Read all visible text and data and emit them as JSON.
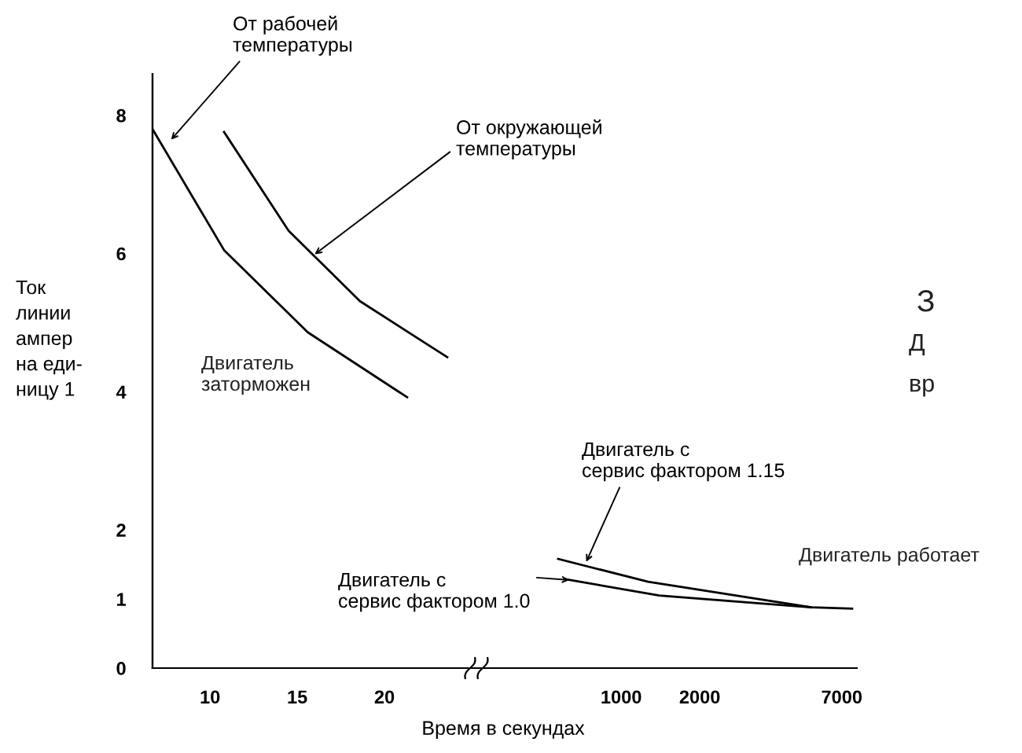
{
  "chart_data": [
    {
      "type": "line",
      "xlabel": "Время в секундах",
      "ylabel": "Ток\nлинии\nампер\nна еди-\nницу 1",
      "xlim": [
        6.7,
        25
      ],
      "xticks": [
        10,
        15,
        20
      ],
      "ylim": [
        0,
        8.6
      ],
      "yticks": [
        0,
        1,
        2,
        4,
        6,
        8
      ],
      "series": [
        {
          "color": "#000000",
          "x": [
            6.7,
            10.8,
            15.6,
            21.3
          ],
          "values": [
            7.8,
            6.05,
            4.86,
            3.92
          ]
        },
        {
          "color": "#000000",
          "x": [
            10.8,
            14.5,
            18.6,
            23.6
          ],
          "values": [
            7.76,
            6.33,
            5.31,
            4.5
          ]
        }
      ],
      "annotations": [
        {
          "text": "От рабочей\nтемпературы",
          "x": 7.6,
          "y": 7.6
        },
        {
          "text": "От окружающей\nтемпературы",
          "x": 15.8,
          "y": 5.95
        },
        "Двигатель\nзаторможен"
      ]
    },
    {
      "type": "line",
      "log": "x",
      "xlim": [
        16,
        8000
      ],
      "xticks": [
        1000,
        2000,
        7000
      ],
      "ylim": [
        0,
        8.6
      ],
      "yticks": [
        0,
        1,
        2,
        4,
        6,
        8
      ],
      "tick_labels": "x",
      "series": [
        {
          "color": "#000000",
          "x": [
            573,
            1268,
            5340,
            7670
          ],
          "values": [
            1.58,
            1.25,
            0.88,
            0.86
          ]
        },
        {
          "color": "#000000",
          "x": [
            605,
            1398,
            5340
          ],
          "values": [
            1.29,
            1.05,
            0.88
          ]
        }
      ],
      "annotations": [
        {
          "text": "Двигатель с\nсервис фактором 1.15",
          "x": 723,
          "y": 1.48
        },
        {
          "text": "Двигатель с\nсервис фактором 1.0",
          "x": 658,
          "y": 1.27
        },
        "Двигатель работает",
        "З",
        "Д",
        "вр"
      ]
    }
  ]
}
